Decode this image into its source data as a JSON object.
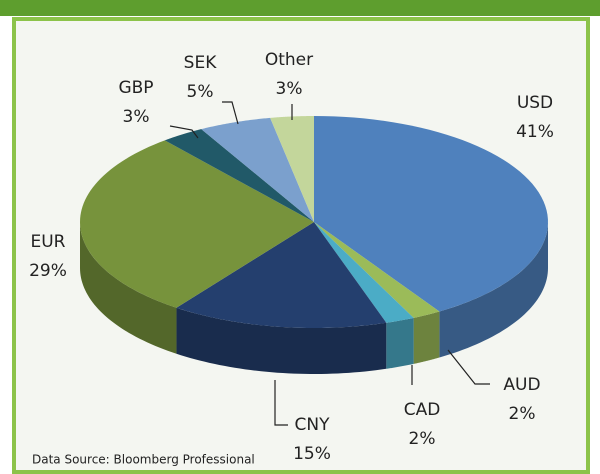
{
  "chart_data": {
    "type": "pie",
    "categories": [
      "USD",
      "AUD",
      "CAD",
      "CNY",
      "EUR",
      "GBP",
      "SEK",
      "Other"
    ],
    "values": [
      41,
      2,
      2,
      15,
      29,
      3,
      5,
      3
    ],
    "value_labels": [
      "41%",
      "2%",
      "2%",
      "15%",
      "29%",
      "3%",
      "5%",
      "3%"
    ],
    "colors": [
      "#4f81bd",
      "#9bbb59",
      "#4bacc6",
      "#243f6e",
      "#77933c",
      "#215968",
      "#7ba0cd",
      "#c3d69b"
    ],
    "source": "Data Source: Bloomberg Professional"
  }
}
